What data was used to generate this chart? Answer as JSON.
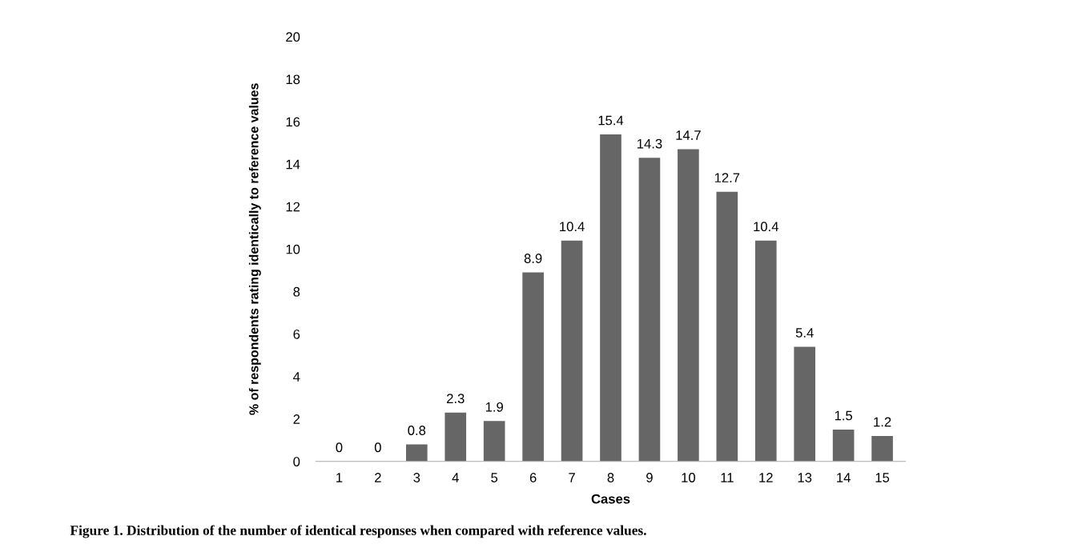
{
  "chart_data": {
    "type": "bar",
    "categories": [
      "1",
      "2",
      "3",
      "4",
      "5",
      "6",
      "7",
      "8",
      "9",
      "10",
      "11",
      "12",
      "13",
      "14",
      "15"
    ],
    "values": [
      0,
      0,
      0.8,
      2.3,
      1.9,
      8.9,
      10.4,
      15.4,
      14.3,
      14.7,
      12.7,
      10.4,
      5.4,
      1.5,
      1.2
    ],
    "color": "#666666",
    "xlabel": "Cases",
    "ylabel": "% of respondents rating identically to reference values",
    "ylim": [
      0,
      20
    ],
    "yticks": [
      0,
      2,
      4,
      6,
      8,
      10,
      12,
      14,
      16,
      18,
      20
    ],
    "grid": false,
    "data_labels": true,
    "annotations": [
      "Figure 1. Distribution of the number of identical responses when compared with reference values."
    ]
  }
}
